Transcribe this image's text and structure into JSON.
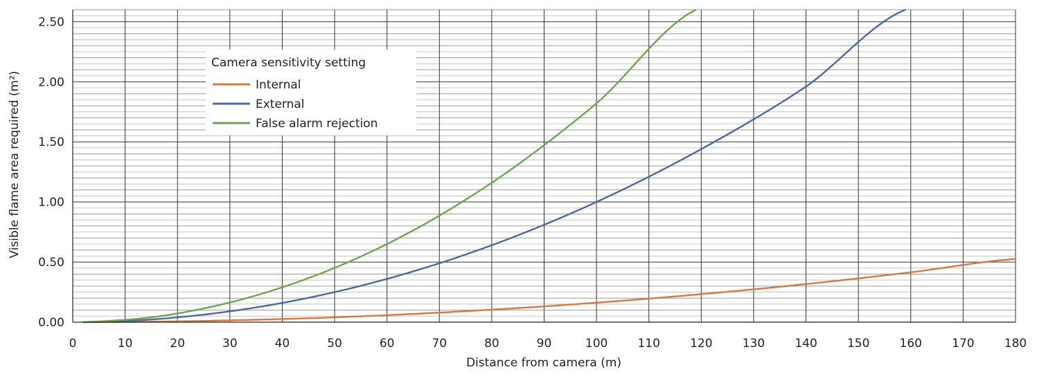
{
  "chart_data": {
    "type": "line",
    "xlabel": "Distance from camera (m)",
    "ylabel": "Visible flame area required (m²)",
    "xlim": [
      0,
      180
    ],
    "ylim": [
      0,
      2.6
    ],
    "x_ticks": [
      "0",
      "10",
      "20",
      "30",
      "40",
      "50",
      "60",
      "70",
      "80",
      "90",
      "100",
      "110",
      "120",
      "130",
      "140",
      "150",
      "160",
      "170",
      "180"
    ],
    "y_ticks": [
      "0.00",
      "0.50",
      "1.00",
      "1.50",
      "2.00",
      "2.50"
    ],
    "grid": true,
    "legend": {
      "title": "Camera sensitivity setting",
      "placement": "top-left"
    },
    "series": [
      {
        "name": "Internal",
        "color": "#d9773e",
        "x": [
          2,
          20,
          40,
          60,
          80,
          100,
          120,
          140,
          160,
          180
        ],
        "y": [
          0.0,
          0.007,
          0.026,
          0.058,
          0.104,
          0.162,
          0.233,
          0.317,
          0.415,
          0.525
        ]
      },
      {
        "name": "External",
        "color": "#4a67a6",
        "x": [
          2,
          20,
          40,
          60,
          80,
          100,
          120,
          140,
          159
        ],
        "y": [
          0.0,
          0.04,
          0.16,
          0.36,
          0.64,
          1.0,
          1.44,
          1.96,
          2.6
        ]
      },
      {
        "name": "False alarm rejection",
        "color": "#6aa84f",
        "x": [
          2,
          20,
          40,
          60,
          80,
          100,
          119
        ],
        "y": [
          0.0,
          0.073,
          0.29,
          0.65,
          1.16,
          1.82,
          2.6
        ]
      }
    ]
  }
}
